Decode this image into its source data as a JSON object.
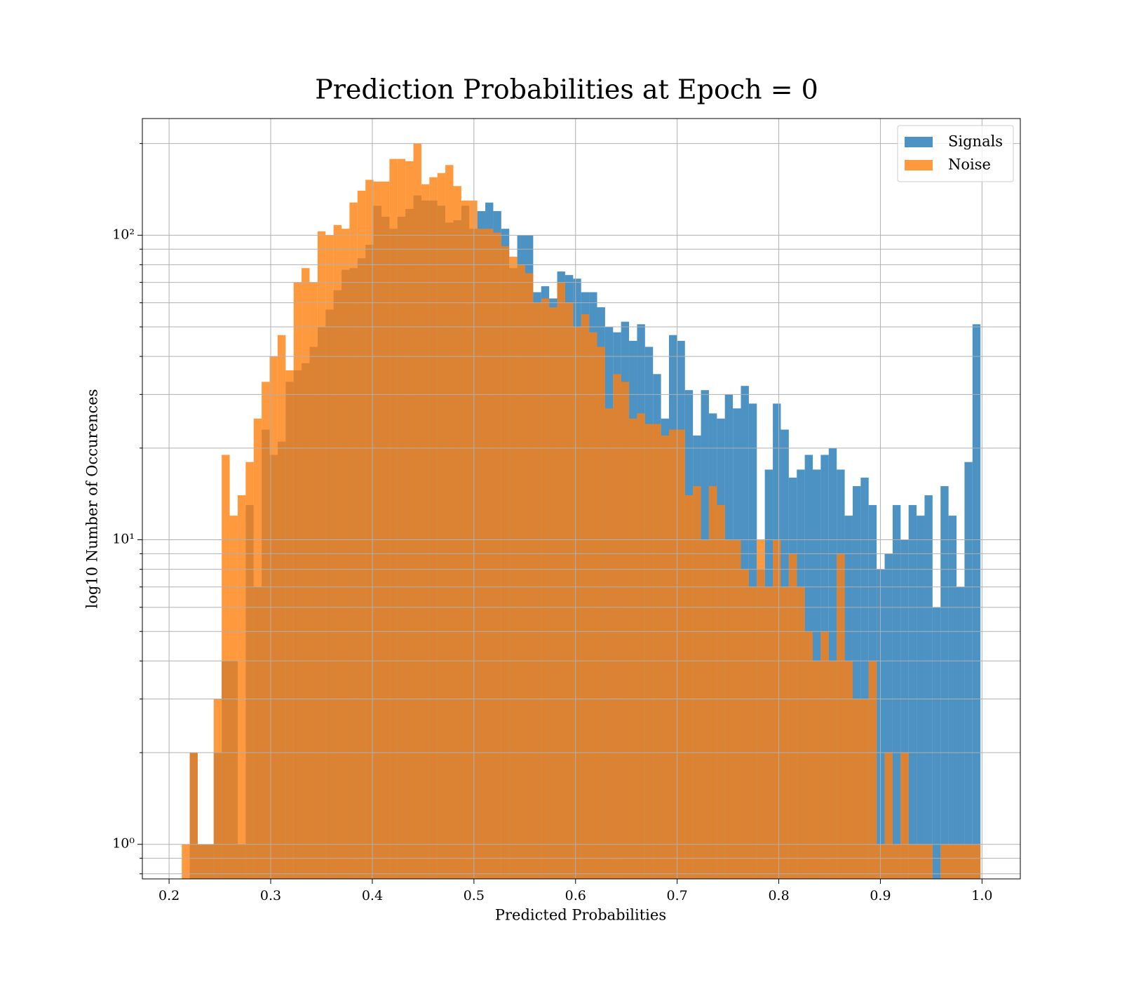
{
  "chart_data": {
    "type": "histogram",
    "title": "Prediction Probabilities at Epoch = 0",
    "xlabel": "Predicted Probabilities",
    "ylabel": "log10 Number of Occurences",
    "yscale": "log",
    "grid": true,
    "legend": "upper right",
    "alpha": 0.8,
    "xlim": [
      0.1737,
      1.0377
    ],
    "ylim": [
      0.77,
      241.6
    ],
    "xticks": [
      0.2,
      0.3,
      0.4,
      0.5,
      0.6,
      0.7,
      0.8,
      0.9,
      {
        "value": 1,
        "label": "1.0"
      }
    ],
    "yticks": [
      {
        "value": 1,
        "label": "10⁰"
      },
      {
        "value": 10,
        "label": "10¹"
      },
      {
        "value": 100,
        "label": "10²"
      }
    ],
    "yminorticks": [
      0.8,
      0.9,
      2,
      3,
      4,
      5,
      6,
      7,
      8,
      9,
      20,
      30,
      40,
      50,
      60,
      70,
      80,
      90,
      200
    ],
    "bins": [
      0.2125,
      0.22036,
      0.22822,
      0.23608,
      0.24394,
      0.2518,
      0.25966,
      0.26752,
      0.27538,
      0.28324,
      0.2911,
      0.29896,
      0.30682,
      0.31468,
      0.32254,
      0.3304,
      0.33826,
      0.34612,
      0.35398,
      0.36184,
      0.3697,
      0.37756,
      0.38542,
      0.39328,
      0.40114,
      0.409,
      0.41686,
      0.42472,
      0.43258,
      0.44044,
      0.4483,
      0.45616,
      0.46402,
      0.47188,
      0.47974,
      0.4876,
      0.49546,
      0.50332,
      0.51118,
      0.51904,
      0.5269,
      0.53476,
      0.54262,
      0.55048,
      0.55834,
      0.5662,
      0.57406,
      0.58192,
      0.58978,
      0.59764,
      0.6055,
      0.61336,
      0.62122,
      0.62908,
      0.63694,
      0.6448,
      0.65266,
      0.66052,
      0.66838,
      0.67624,
      0.6841,
      0.69196,
      0.69982,
      0.70768,
      0.71554,
      0.7234,
      0.73126,
      0.73912,
      0.74698,
      0.75484,
      0.7627,
      0.77056,
      0.77842,
      0.78628,
      0.79414,
      0.802,
      0.80986,
      0.81772,
      0.82558,
      0.83344,
      0.8413,
      0.84916,
      0.85702,
      0.86488,
      0.87274,
      0.8806,
      0.88846,
      0.89632,
      0.90418,
      0.91204,
      0.9199,
      0.92776,
      0.93562,
      0.94348,
      0.95134,
      0.9592,
      0.96706,
      0.97492,
      0.98278,
      0.99064,
      0.9985
    ],
    "series": [
      {
        "name": "Signals",
        "color": "#1f77b4",
        "values": [
          0,
          2,
          1,
          1,
          2,
          4,
          4,
          1,
          13,
          7,
          23,
          19,
          21,
          33,
          36,
          38,
          43,
          50,
          57,
          66,
          77,
          78,
          84,
          93,
          125,
          115,
          105,
          115,
          122,
          135,
          130,
          130,
          125,
          110,
          112,
          125,
          105,
          120,
          128,
          120,
          105,
          78,
          100,
          100,
          65,
          68,
          62,
          76,
          74,
          72,
          65,
          65,
          58,
          50,
          48,
          52,
          45,
          51,
          43,
          35,
          25,
          47,
          45,
          31,
          22,
          31,
          26,
          25,
          30,
          27,
          32,
          28,
          8,
          17,
          28,
          23,
          16,
          17,
          19,
          17,
          19,
          20,
          17,
          12,
          15,
          16,
          13,
          8,
          9,
          13,
          10,
          13,
          12,
          14,
          6,
          15,
          12,
          7,
          18,
          51
        ]
      },
      {
        "name": "Noise",
        "color": "#ff7f0e",
        "values": [
          1,
          2,
          1,
          1,
          3,
          19,
          12,
          14,
          18,
          25,
          33,
          40,
          47,
          36,
          70,
          78,
          70,
          103,
          100,
          108,
          105,
          128,
          140,
          152,
          150,
          150,
          178,
          178,
          175,
          200,
          147,
          155,
          160,
          170,
          145,
          130,
          130,
          105,
          105,
          102,
          92,
          85,
          80,
          75,
          60,
          62,
          58,
          70,
          60,
          50,
          55,
          48,
          43,
          27,
          35,
          33,
          25,
          26,
          24,
          24,
          22,
          23,
          23,
          14,
          15,
          10,
          15,
          13,
          10,
          10,
          8,
          7,
          10,
          7,
          10,
          7,
          9,
          7,
          5,
          4,
          5,
          4,
          9,
          4,
          3,
          3,
          4,
          1,
          2,
          1,
          2,
          1,
          1,
          1,
          0,
          1,
          1,
          1,
          1,
          1
        ]
      }
    ]
  }
}
